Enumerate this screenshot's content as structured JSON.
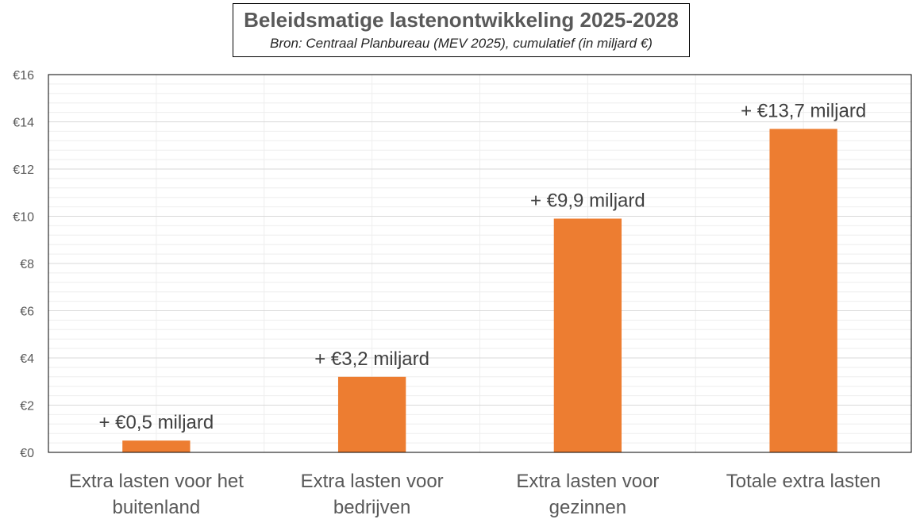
{
  "title": "Beleidsmatige lastenontwikkeling 2025-2028",
  "subtitle": "Bron: Centraal Planbureau (MEV 2025), cumulatief (in miljard €)",
  "chart_data": {
    "type": "bar",
    "categories": [
      [
        "Extra lasten voor het",
        "buitenland"
      ],
      [
        "Extra lasten voor",
        "bedrijven"
      ],
      [
        "Extra lasten voor",
        "gezinnen"
      ],
      [
        "Totale extra lasten"
      ]
    ],
    "values": [
      0.5,
      3.2,
      9.9,
      13.7
    ],
    "data_labels": [
      "+ €0,5 miljard",
      "+ €3,2 miljard",
      "+ €9,9 miljard",
      "+ €13,7 miljard"
    ],
    "ylim": [
      0,
      16
    ],
    "yticks": [
      "€0",
      "€2",
      "€4",
      "€6",
      "€8",
      "€10",
      "€12",
      "€14",
      "€16"
    ],
    "grid": true,
    "bar_color": "#ED7D31",
    "legend": "none"
  }
}
